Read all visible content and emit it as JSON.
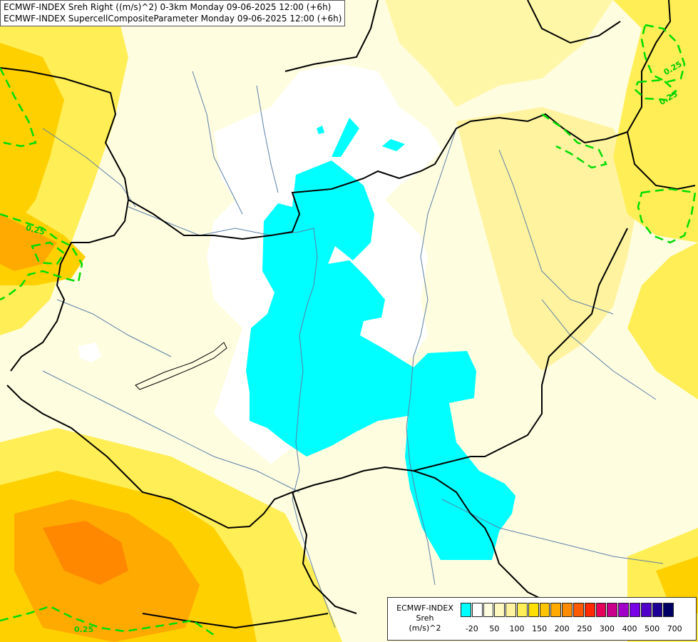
{
  "titles": {
    "line1": "ECMWF-INDEX Sreh Right ((m/s)^2) 0-3km Monday 09-06-2025 12:00 (+6h)",
    "line2": "ECMWF-INDEX SupercellCompositeParameter Monday 09-06-2025 12:00 (+6h)"
  },
  "contour_labels": [
    "0.25",
    "0.25",
    "0.25",
    "0.25"
  ],
  "legend": {
    "title_line1": "ECMWF-INDEX",
    "title_line2": "Sreh",
    "title_line3": "(m/s)^2",
    "colors": [
      "#00ffff",
      "#ffffff",
      "#fffde0",
      "#fff9c0",
      "#fff3a0",
      "#ffee55",
      "#ffe000",
      "#ffc400",
      "#ffaa00",
      "#ff8c00",
      "#ff5a00",
      "#ff2a00",
      "#e4005a",
      "#c8008c",
      "#a000c8",
      "#7800e6",
      "#5000c8",
      "#1e0096",
      "#000064"
    ],
    "ticks": [
      "-20",
      "50",
      "100",
      "150",
      "200",
      "250",
      "300",
      "400",
      "500",
      "700"
    ]
  },
  "colors": {
    "cyan": "#00ffff",
    "white": "#ffffff",
    "pale": "#fffde0",
    "light_yellow": "#fff7a8",
    "yellow": "#ffe85a",
    "gold": "#ffd000",
    "orange": "#ffaa00",
    "dark_orange": "#ff8800",
    "contour": "#00dd00",
    "border": "#000000",
    "river": "#5a7fa8"
  }
}
